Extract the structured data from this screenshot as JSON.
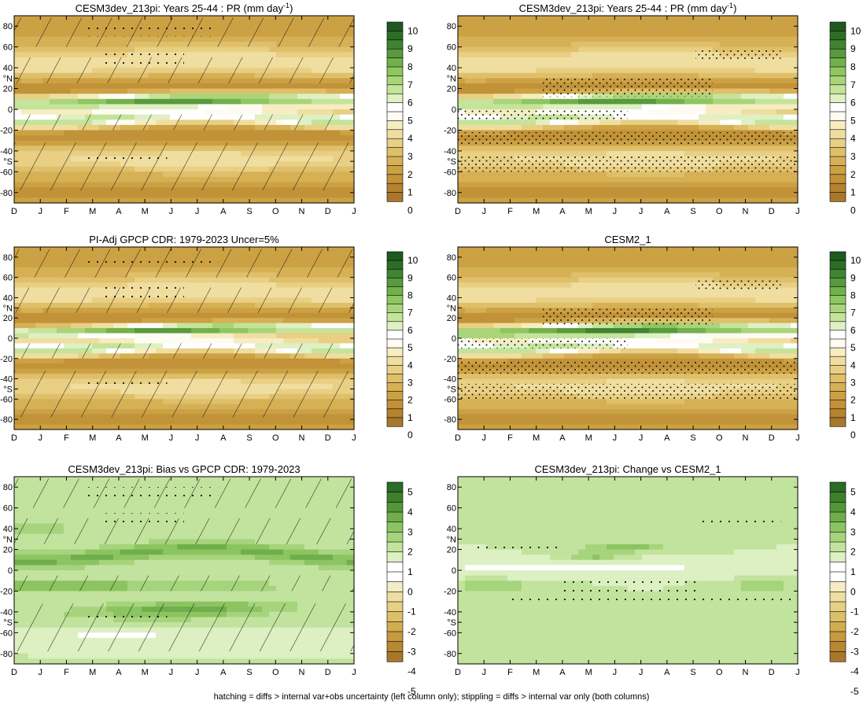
{
  "footer": "hatching = diffs > internal var+obs uncertainty (left column only); stippling = diffs > internal var only (both columns)",
  "palettes": {
    "precip": [
      "#a8772a",
      "#b5832f",
      "#c29238",
      "#cca144",
      "#d6b055",
      "#dfbf69",
      "#e8cf83",
      "#f0dea0",
      "#f7ecc2",
      "#fdfbf2",
      "#ffffff",
      "#dff0c4",
      "#c4e49a",
      "#a9d57a",
      "#8ec65f",
      "#72b04b",
      "#589a3d",
      "#408331",
      "#2d6d27",
      "#1f5920"
    ],
    "diff": [
      "#a8772a",
      "#b88731",
      "#c69a3d",
      "#d2ad50",
      "#dcbf69",
      "#e6d085",
      "#eedea4",
      "#f5ebc4",
      "#ffffff",
      "#ffffff",
      "#dcf0c2",
      "#c2e39d",
      "#a6d47c",
      "#8bc460",
      "#6fae4b",
      "#539638",
      "#3c802e",
      "#2a6b25"
    ]
  },
  "chart_data": [
    {
      "type": "heatmap",
      "title": "CESM3dev_213pi: Years 25-44 : PR (mm day",
      "title_sup": "-1",
      "title_tail": ")",
      "months": [
        "D",
        "J",
        "F",
        "M",
        "A",
        "M",
        "J",
        "J",
        "A",
        "S",
        "O",
        "N",
        "D",
        "J"
      ],
      "lat_ticks": [
        "80",
        "60",
        "40",
        "°N",
        "20",
        "0",
        "-20",
        "-40",
        "°S",
        "-60",
        "-80"
      ],
      "lat_values": [
        80,
        60,
        40,
        30,
        20,
        0,
        -20,
        -40,
        -50,
        -60,
        -80
      ],
      "ylim": [
        -90,
        90
      ],
      "colorbar_labels": [
        "10",
        "9",
        "8",
        "7",
        "6",
        "5",
        "4",
        "3",
        "2",
        "1",
        "0"
      ],
      "colorbar_levels": [
        10,
        9,
        8,
        7,
        6,
        5,
        4,
        3,
        2,
        1,
        0
      ],
      "palette": "precip",
      "field": "model",
      "hatching": true,
      "stippling": "sparse"
    },
    {
      "type": "heatmap",
      "title": "CESM3dev_213pi: Years 25-44 : PR (mm day",
      "title_sup": "-1",
      "title_tail": ")",
      "months": [
        "D",
        "J",
        "F",
        "M",
        "A",
        "M",
        "J",
        "J",
        "A",
        "S",
        "O",
        "N",
        "D",
        "J"
      ],
      "lat_ticks": [
        "80",
        "60",
        "40",
        "°N",
        "20",
        "0",
        "-20",
        "-40",
        "°S",
        "-60",
        "-80"
      ],
      "lat_values": [
        80,
        60,
        40,
        30,
        20,
        0,
        -20,
        -40,
        -50,
        -60,
        -80
      ],
      "ylim": [
        -90,
        90
      ],
      "colorbar_labels": [
        "10",
        "9",
        "8",
        "7",
        "6",
        "5",
        "4",
        "3",
        "2",
        "1",
        "0"
      ],
      "colorbar_levels": [
        10,
        9,
        8,
        7,
        6,
        5,
        4,
        3,
        2,
        1,
        0
      ],
      "palette": "precip",
      "field": "model",
      "hatching": false,
      "stippling": "dense"
    },
    {
      "type": "heatmap",
      "title": "PI-Adj GPCP CDR: 1979-2023 Uncer=5%",
      "months": [
        "D",
        "J",
        "F",
        "M",
        "A",
        "M",
        "J",
        "J",
        "A",
        "S",
        "O",
        "N",
        "D",
        "J"
      ],
      "lat_ticks": [
        "80",
        "60",
        "40",
        "°N",
        "20",
        "0",
        "-20",
        "-40",
        "°S",
        "-60",
        "-80"
      ],
      "lat_values": [
        80,
        60,
        40,
        30,
        20,
        0,
        -20,
        -40,
        -50,
        -60,
        -80
      ],
      "ylim": [
        -90,
        90
      ],
      "colorbar_labels": [
        "10",
        "9",
        "8",
        "7",
        "6",
        "5",
        "4",
        "3",
        "2",
        "1",
        "0"
      ],
      "colorbar_levels": [
        10,
        9,
        8,
        7,
        6,
        5,
        4,
        3,
        2,
        1,
        0
      ],
      "palette": "precip",
      "field": "obs",
      "hatching": true,
      "stippling": "sparse"
    },
    {
      "type": "heatmap",
      "title": "CESM2_1",
      "months": [
        "D",
        "J",
        "F",
        "M",
        "A",
        "M",
        "J",
        "J",
        "A",
        "S",
        "O",
        "N",
        "D",
        "J"
      ],
      "lat_ticks": [
        "80",
        "60",
        "40",
        "°N",
        "20",
        "0",
        "-20",
        "-40",
        "°S",
        "-60",
        "-80"
      ],
      "lat_values": [
        80,
        60,
        40,
        30,
        20,
        0,
        -20,
        -40,
        -50,
        -60,
        -80
      ],
      "ylim": [
        -90,
        90
      ],
      "colorbar_labels": [
        "10",
        "9",
        "8",
        "7",
        "6",
        "5",
        "4",
        "3",
        "2",
        "1",
        "0"
      ],
      "colorbar_levels": [
        10,
        9,
        8,
        7,
        6,
        5,
        4,
        3,
        2,
        1,
        0
      ],
      "palette": "precip",
      "field": "model2",
      "hatching": false,
      "stippling": "dense"
    },
    {
      "type": "heatmap",
      "title": "CESM3dev_213pi: Bias vs GPCP CDR: 1979-2023",
      "months": [
        "D",
        "J",
        "F",
        "M",
        "A",
        "M",
        "J",
        "J",
        "A",
        "S",
        "O",
        "N",
        "D",
        "J"
      ],
      "lat_ticks": [
        "80",
        "60",
        "40",
        "°N",
        "20",
        "0",
        "-20",
        "-40",
        "°S",
        "-60",
        "-80"
      ],
      "lat_values": [
        80,
        60,
        40,
        30,
        20,
        0,
        -20,
        -40,
        -50,
        -60,
        -80
      ],
      "ylim": [
        -90,
        90
      ],
      "colorbar_labels": [
        "5",
        "4",
        "3",
        "2",
        "1",
        "0",
        "-1",
        "-2",
        "-3",
        "-4",
        "-5"
      ],
      "colorbar_levels": [
        5,
        4,
        3,
        2,
        1,
        0,
        -1,
        -2,
        -3,
        -4,
        -5
      ],
      "palette": "diff",
      "field": "bias",
      "hatching": true,
      "stippling": "sparse"
    },
    {
      "type": "heatmap",
      "title": "CESM3dev_213pi: Change vs CESM2_1",
      "months": [
        "D",
        "J",
        "F",
        "M",
        "A",
        "M",
        "J",
        "J",
        "A",
        "S",
        "O",
        "N",
        "D",
        "J"
      ],
      "lat_ticks": [
        "80",
        "60",
        "40",
        "°N",
        "20",
        "0",
        "-20",
        "-40",
        "°S",
        "-60",
        "-80"
      ],
      "lat_values": [
        80,
        60,
        40,
        30,
        20,
        0,
        -20,
        -40,
        -50,
        -60,
        -80
      ],
      "ylim": [
        -90,
        90
      ],
      "colorbar_labels": [
        "5",
        "4",
        "3",
        "2",
        "1",
        "0",
        "-1",
        "-2",
        "-3",
        "-4",
        "-5"
      ],
      "colorbar_levels": [
        5,
        4,
        3,
        2,
        1,
        0,
        -1,
        -2,
        -3,
        -4,
        -5
      ],
      "palette": "diff",
      "field": "change",
      "hatching": false,
      "stippling": "medium"
    }
  ]
}
